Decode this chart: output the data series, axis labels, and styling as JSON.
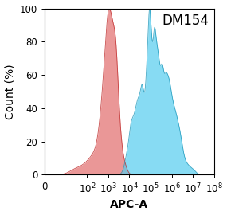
{
  "title": "DM154",
  "xlabel": "APC-A",
  "ylabel": "Count (%)",
  "xlim_log": [
    0,
    8
  ],
  "ylim": [
    0,
    100
  ],
  "yticks": [
    0,
    20,
    40,
    60,
    80,
    100
  ],
  "xticks_log": [
    0,
    2,
    3,
    4,
    5,
    6,
    7,
    8
  ],
  "red_color": "#E06060",
  "red_edge_color": "#C03030",
  "blue_color": "#55CCEE",
  "blue_edge_color": "#2299BB",
  "red_fill_alpha": 0.65,
  "blue_fill_alpha": 0.7,
  "background_color": "#ffffff",
  "title_fontsize": 12,
  "label_fontsize": 10,
  "tick_fontsize": 8.5
}
